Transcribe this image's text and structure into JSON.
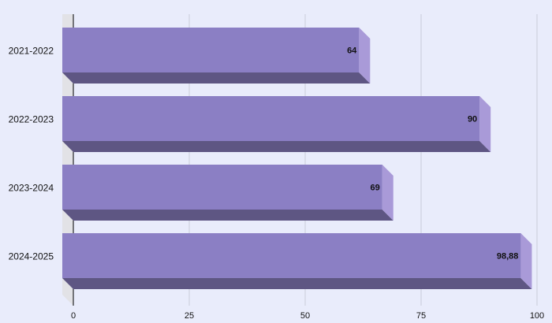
{
  "chart_data": {
    "type": "bar",
    "orientation": "horizontal",
    "categories": [
      "2021-2022",
      "2022-2023",
      "2023-2024",
      "2024-2025"
    ],
    "values": [
      64,
      90,
      69,
      98.88
    ],
    "value_labels": [
      "64",
      "90",
      "69",
      "98,88"
    ],
    "xlim": [
      0,
      100
    ],
    "x_ticks": [
      0,
      25,
      50,
      75,
      100
    ],
    "x_tick_labels": [
      "0",
      "25",
      "50",
      "75",
      "100"
    ],
    "grid": true,
    "title": "",
    "xlabel": "",
    "ylabel": "",
    "colors": {
      "background": "#e9ecfb",
      "bar_front": "#8b7fc4",
      "bar_bottom": "#5e5683",
      "bar_side": "#a99ad8",
      "grid": "#c9cbd9",
      "axis": "#000000",
      "label": "#111111",
      "floor": "#e2e2e6"
    }
  }
}
